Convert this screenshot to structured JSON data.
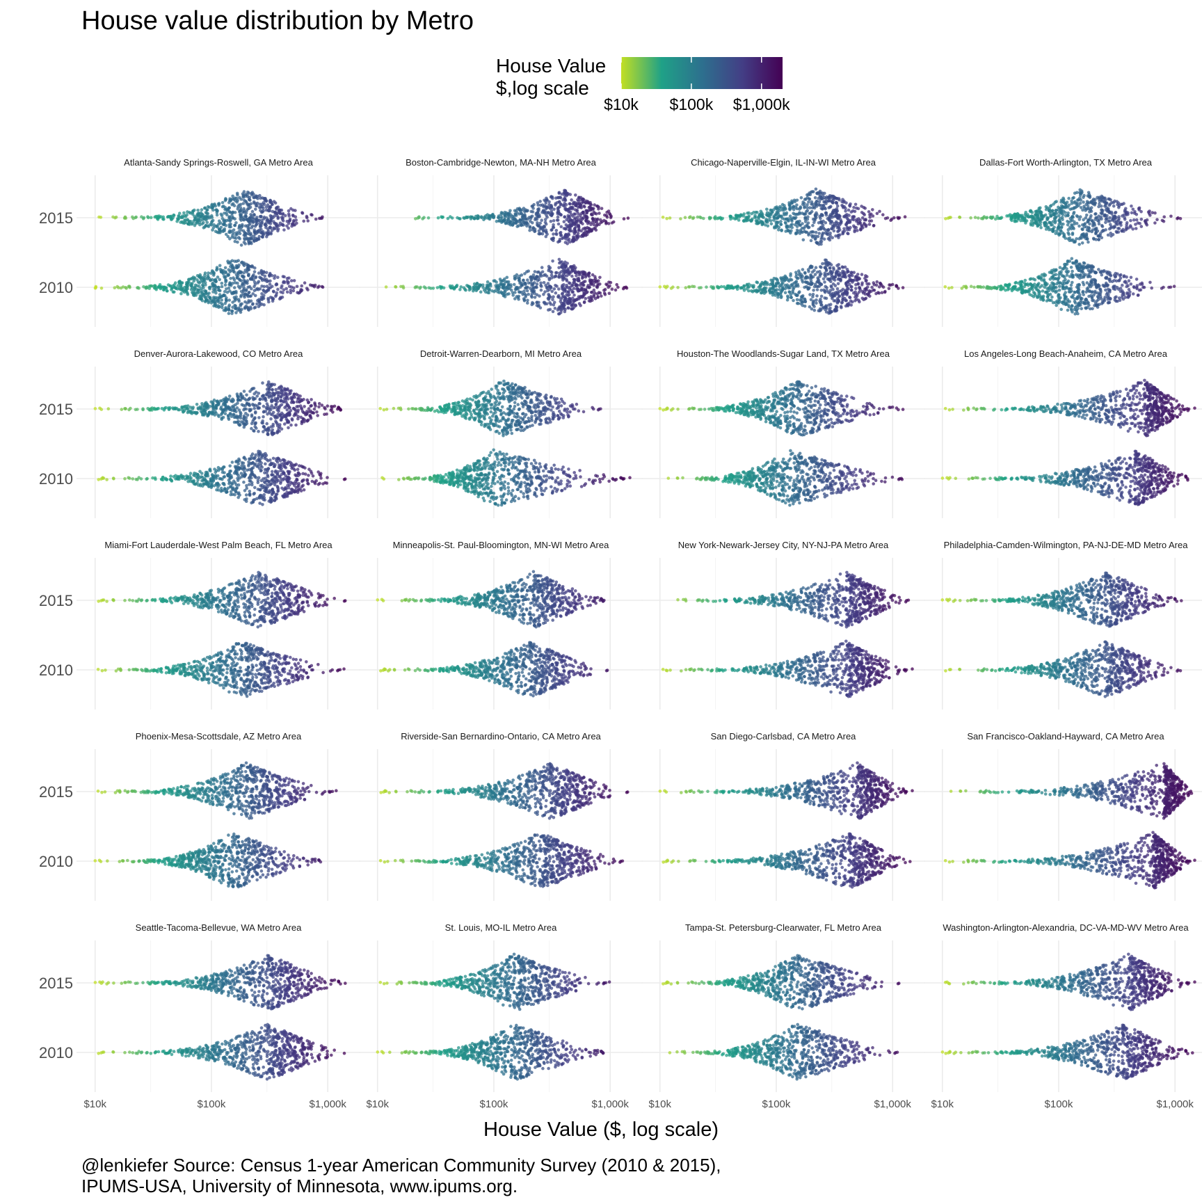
{
  "chart_data": {
    "type": "scatter",
    "subtype": "beeswarm",
    "title": "House value distribution by Metro",
    "xlabel": "House Value ($, log scale)",
    "ylabel": "",
    "x_scale": "log10",
    "x_range": [
      10000,
      1500000
    ],
    "x_ticks": [
      10000,
      100000,
      1000000
    ],
    "x_tick_labels": [
      "$10k",
      "$100k",
      "$1,000k"
    ],
    "y_categories": [
      "2015",
      "2010"
    ],
    "grid": true,
    "legend": {
      "title_line1": "House Value",
      "title_line2": "$,log scale",
      "type": "colorbar",
      "position": "top",
      "tick_labels": [
        "$10k",
        "$100k",
        "$1,000k"
      ],
      "palette": [
        "#c2df23",
        "#1fa187",
        "#2d708e",
        "#433e85",
        "#440154"
      ]
    },
    "caption_line1": "@lenkiefer Source: Census 1-year American Community Survey (2010 & 2015),",
    "caption_line2": "IPUMS-USA, University of Minnesota, www.ipums.org.",
    "panels": [
      {
        "name": "Atlanta-Sandy Springs-Roswell, GA Metro Area",
        "series": [
          {
            "year": "2015",
            "min": 10000,
            "peak": 190000,
            "max": 950000
          },
          {
            "year": "2010",
            "min": 10000,
            "peak": 150000,
            "max": 1000000
          }
        ]
      },
      {
        "name": "Boston-Cambridge-Newton, MA-NH Metro Area",
        "series": [
          {
            "year": "2015",
            "min": 20000,
            "peak": 400000,
            "max": 1500000
          },
          {
            "year": "2010",
            "min": 10000,
            "peak": 360000,
            "max": 1500000
          }
        ]
      },
      {
        "name": "Chicago-Naperville-Elgin, IL-IN-WI Metro Area",
        "series": [
          {
            "year": "2015",
            "min": 10000,
            "peak": 220000,
            "max": 1300000
          },
          {
            "year": "2010",
            "min": 10000,
            "peak": 260000,
            "max": 1300000
          }
        ]
      },
      {
        "name": "Dallas-Fort Worth-Arlington, TX Metro Area",
        "series": [
          {
            "year": "2015",
            "min": 10000,
            "peak": 150000,
            "max": 1200000
          },
          {
            "year": "2010",
            "min": 10000,
            "peak": 130000,
            "max": 1000000
          }
        ]
      },
      {
        "name": "Denver-Aurora-Lakewood, CO Metro Area",
        "series": [
          {
            "year": "2015",
            "min": 10000,
            "peak": 300000,
            "max": 1500000
          },
          {
            "year": "2010",
            "min": 10000,
            "peak": 250000,
            "max": 1500000
          }
        ]
      },
      {
        "name": "Detroit-Warren-Dearborn, MI Metro Area",
        "series": [
          {
            "year": "2015",
            "min": 10000,
            "peak": 120000,
            "max": 900000
          },
          {
            "year": "2010",
            "min": 10000,
            "peak": 100000,
            "max": 1500000
          }
        ]
      },
      {
        "name": "Houston-The Woodlands-Sugar Land, TX Metro Area",
        "series": [
          {
            "year": "2015",
            "min": 10000,
            "peak": 150000,
            "max": 1300000
          },
          {
            "year": "2010",
            "min": 10000,
            "peak": 130000,
            "max": 1300000
          }
        ]
      },
      {
        "name": "Los Angeles-Long Beach-Anaheim, CA Metro Area",
        "series": [
          {
            "year": "2015",
            "min": 10000,
            "peak": 550000,
            "max": 1500000
          },
          {
            "year": "2010",
            "min": 10000,
            "peak": 450000,
            "max": 1500000
          }
        ]
      },
      {
        "name": "Miami-Fort Lauderdale-West Palm Beach, FL Metro Area",
        "series": [
          {
            "year": "2015",
            "min": 10000,
            "peak": 250000,
            "max": 1500000
          },
          {
            "year": "2010",
            "min": 10000,
            "peak": 180000,
            "max": 1400000
          }
        ]
      },
      {
        "name": "Minneapolis-St. Paul-Bloomington, MN-WI Metro Area",
        "series": [
          {
            "year": "2015",
            "min": 10000,
            "peak": 220000,
            "max": 1000000
          },
          {
            "year": "2010",
            "min": 10000,
            "peak": 200000,
            "max": 1000000
          }
        ]
      },
      {
        "name": "New York-Newark-Jersey City, NY-NJ-PA Metro Area",
        "series": [
          {
            "year": "2015",
            "min": 10000,
            "peak": 400000,
            "max": 1500000
          },
          {
            "year": "2010",
            "min": 10000,
            "peak": 400000,
            "max": 1500000
          }
        ]
      },
      {
        "name": "Philadelphia-Camden-Wilmington, PA-NJ-DE-MD Metro Area",
        "series": [
          {
            "year": "2015",
            "min": 10000,
            "peak": 250000,
            "max": 1200000
          },
          {
            "year": "2010",
            "min": 10000,
            "peak": 250000,
            "max": 1200000
          }
        ]
      },
      {
        "name": "Phoenix-Mesa-Scottsdale, AZ Metro Area",
        "series": [
          {
            "year": "2015",
            "min": 10000,
            "peak": 200000,
            "max": 1200000
          },
          {
            "year": "2010",
            "min": 10000,
            "peak": 150000,
            "max": 1000000
          }
        ]
      },
      {
        "name": "Riverside-San Bernardino-Ontario, CA Metro Area",
        "series": [
          {
            "year": "2015",
            "min": 10000,
            "peak": 300000,
            "max": 1500000
          },
          {
            "year": "2010",
            "min": 10000,
            "peak": 250000,
            "max": 1400000
          }
        ]
      },
      {
        "name": "San Diego-Carlsbad, CA Metro Area",
        "series": [
          {
            "year": "2015",
            "min": 10000,
            "peak": 500000,
            "max": 1500000
          },
          {
            "year": "2010",
            "min": 10000,
            "peak": 420000,
            "max": 1500000
          }
        ]
      },
      {
        "name": "San Francisco-Oakland-Hayward, CA Metro Area",
        "series": [
          {
            "year": "2015",
            "min": 10000,
            "peak": 800000,
            "max": 1500000
          },
          {
            "year": "2010",
            "min": 10000,
            "peak": 650000,
            "max": 1500000
          }
        ]
      },
      {
        "name": "Seattle-Tacoma-Bellevue, WA Metro Area",
        "series": [
          {
            "year": "2015",
            "min": 10000,
            "peak": 300000,
            "max": 1500000
          },
          {
            "year": "2010",
            "min": 10000,
            "peak": 300000,
            "max": 1500000
          }
        ]
      },
      {
        "name": "St. Louis, MO-IL Metro Area",
        "series": [
          {
            "year": "2015",
            "min": 10000,
            "peak": 150000,
            "max": 1000000
          },
          {
            "year": "2010",
            "min": 10000,
            "peak": 150000,
            "max": 1000000
          }
        ]
      },
      {
        "name": "Tampa-St. Petersburg-Clearwater, FL Metro Area",
        "series": [
          {
            "year": "2015",
            "min": 10000,
            "peak": 150000,
            "max": 1200000
          },
          {
            "year": "2010",
            "min": 10000,
            "peak": 150000,
            "max": 1200000
          }
        ]
      },
      {
        "name": "Washington-Arlington-Alexandria, DC-VA-MD-WV Metro Area",
        "series": [
          {
            "year": "2015",
            "min": 10000,
            "peak": 400000,
            "max": 1500000
          },
          {
            "year": "2010",
            "min": 10000,
            "peak": 350000,
            "max": 1500000
          }
        ]
      }
    ]
  }
}
